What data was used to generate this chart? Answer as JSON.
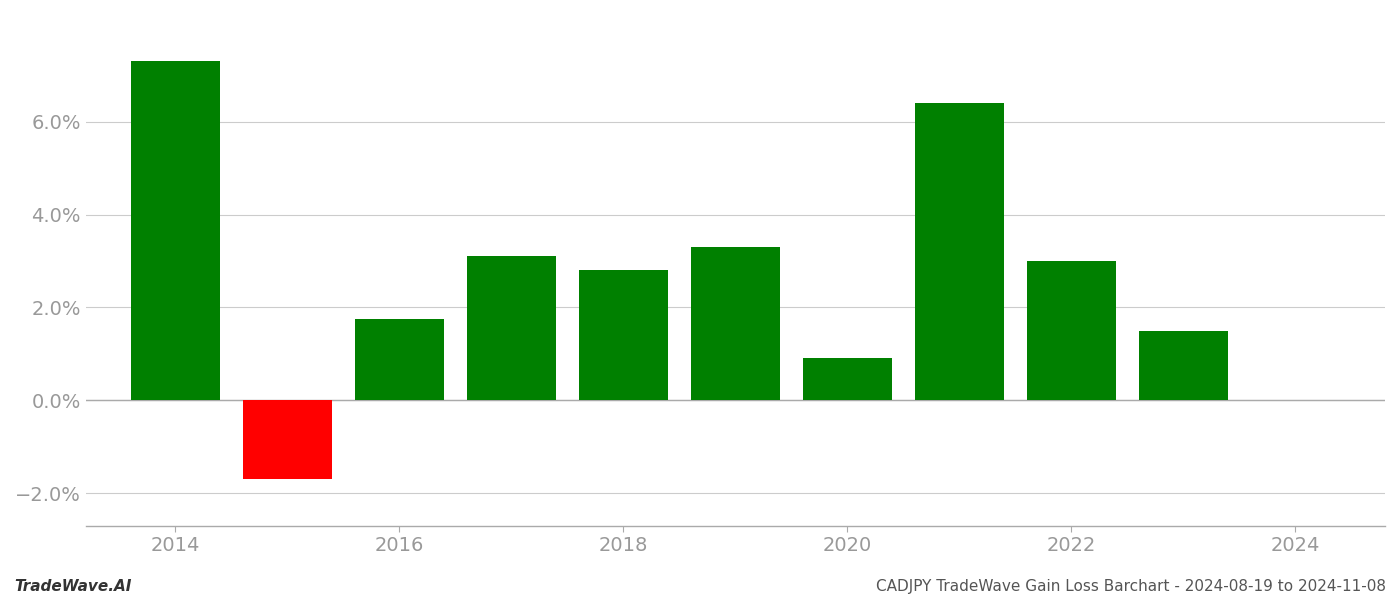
{
  "years": [
    2014,
    2015,
    2016,
    2017,
    2018,
    2019,
    2020,
    2021,
    2022,
    2023
  ],
  "values": [
    0.073,
    -0.017,
    0.0175,
    0.031,
    0.028,
    0.033,
    0.009,
    0.064,
    0.03,
    0.015
  ],
  "bar_colors": [
    "#008000",
    "#ff0000",
    "#008000",
    "#008000",
    "#008000",
    "#008000",
    "#008000",
    "#008000",
    "#008000",
    "#008000"
  ],
  "xlim": [
    2013.2,
    2024.8
  ],
  "ylim": [
    -0.027,
    0.083
  ],
  "yticks": [
    -0.02,
    0.0,
    0.02,
    0.04,
    0.06
  ],
  "xticks": [
    2014,
    2016,
    2018,
    2020,
    2022,
    2024
  ],
  "bar_width": 0.8,
  "background_color": "#ffffff",
  "grid_color": "#cccccc",
  "footer_left": "TradeWave.AI",
  "footer_right": "CADJPY TradeWave Gain Loss Barchart - 2024-08-19 to 2024-11-08",
  "tick_color": "#999999",
  "spine_color": "#aaaaaa",
  "tick_fontsize": 14,
  "footer_fontsize": 11
}
